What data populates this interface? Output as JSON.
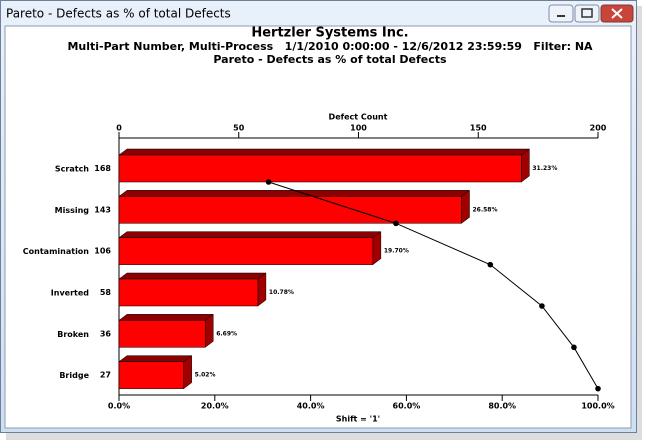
{
  "window": {
    "title": "Pareto - Defects as % of total Defects"
  },
  "chart_data": {
    "type": "bar",
    "orientation": "horizontal",
    "title": "Hertzler Systems Inc.",
    "subtitle": "Multi-Part Number, Multi-Process   1/1/2010 0:00:00 - 12/6/2012 23:59:59   Filter: NA",
    "subtitle2": "Pareto - Defects as % of total Defects",
    "xlabel": "Defect Count",
    "x2label": "Shift = '1'",
    "categories": [
      "Scratch",
      "Missing",
      "Contamination",
      "Inverted",
      "Broken",
      "Bridge"
    ],
    "values": [
      168,
      143,
      106,
      58,
      36,
      27
    ],
    "color": "#ff0000",
    "xlim": [
      0,
      200
    ],
    "xticks": [
      0,
      50,
      100,
      150,
      200
    ],
    "percent": {
      "values": [
        31.23,
        26.58,
        19.7,
        10.78,
        6.69,
        5.02
      ],
      "value_labels": [
        "31.23%",
        "26.58%",
        "19.70%",
        "10.78%",
        "6.69%",
        "5.02%"
      ]
    },
    "cumulative": {
      "values": [
        31.23,
        57.81,
        77.51,
        88.29,
        94.98,
        100.0
      ],
      "color": "#000000",
      "axis": "x2"
    },
    "x2lim": [
      0,
      100
    ],
    "x2ticks": [
      {
        "value": 0,
        "label": "0.0%"
      },
      {
        "value": 20,
        "label": "20.0%"
      },
      {
        "value": 40,
        "label": "40.0%"
      },
      {
        "value": 60,
        "label": "60.0%"
      },
      {
        "value": 80,
        "label": "80.0%"
      },
      {
        "value": 100,
        "label": "100.0%"
      }
    ]
  }
}
